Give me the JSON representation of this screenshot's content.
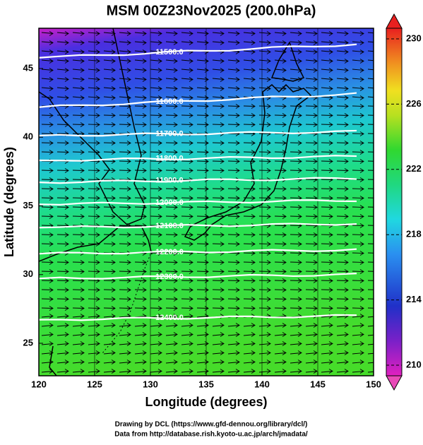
{
  "title": "MSM 00Z23Nov2025 (200.0hPa)",
  "x_axis": {
    "label": "Longitude (degrees)",
    "ticks": [
      120,
      125,
      130,
      135,
      140,
      145,
      150
    ]
  },
  "y_axis": {
    "label": "Latitude  (degrees)",
    "ticks": [
      25,
      30,
      35,
      40,
      45
    ]
  },
  "colorbar": {
    "ticks": [
      210,
      214,
      218,
      222,
      226,
      230
    ]
  },
  "contours": [
    {
      "label": "11500.0",
      "lat": 46.4
    },
    {
      "label": "11600.0",
      "lat": 42.8
    },
    {
      "label": "11700.0",
      "lat": 40.3
    },
    {
      "label": "11800.0",
      "lat": 38.5
    },
    {
      "label": "11900.0",
      "lat": 36.9
    },
    {
      "label": "12000.0",
      "lat": 35.3
    },
    {
      "label": "12100.0",
      "lat": 33.6
    },
    {
      "label": "12200.0",
      "lat": 31.7
    },
    {
      "label": "12300.0",
      "lat": 29.9
    },
    {
      "label": "12400.0",
      "lat": 26.9
    }
  ],
  "credits": [
    "Drawing by DCL (https://www.gfd-dennou.org/library/dcl/)",
    "Data from http://database.rish.kyoto-u.ac.jp/arch/jmadata/"
  ]
}
